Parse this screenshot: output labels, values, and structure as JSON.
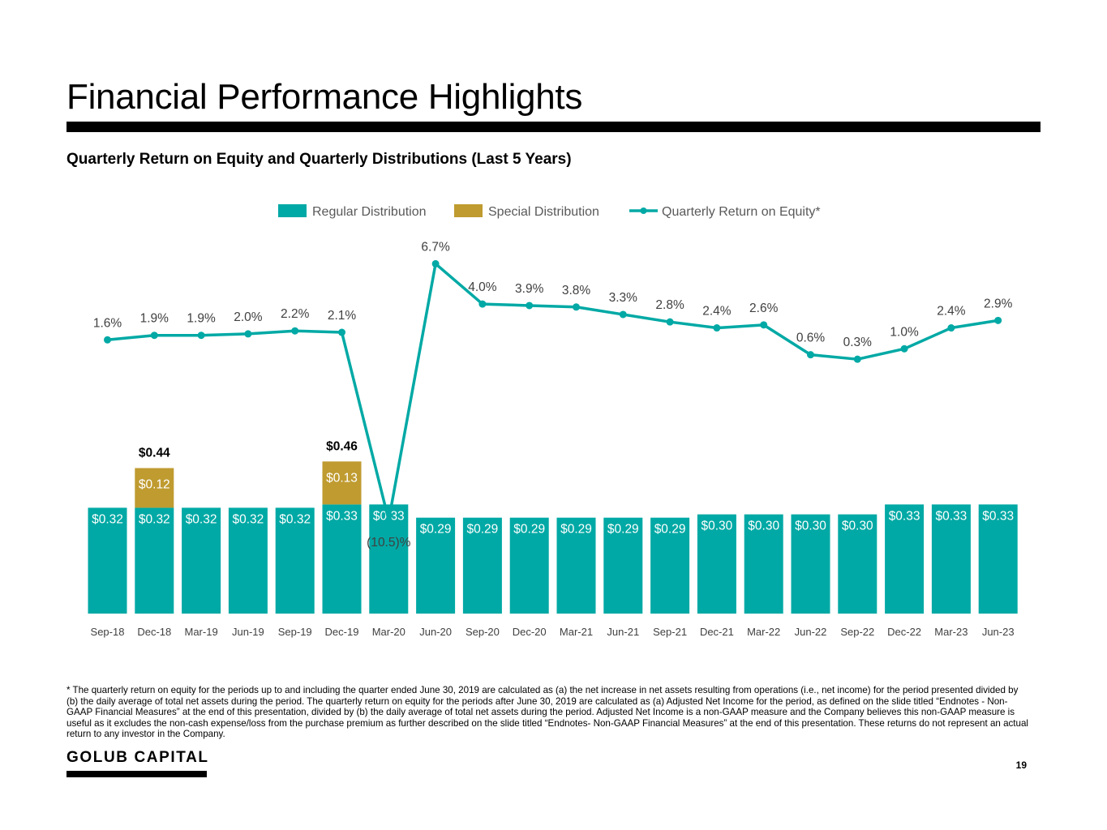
{
  "page": {
    "title": "Financial Performance Highlights",
    "subtitle": "Quarterly Return on Equity and Quarterly Distributions (Last 5 Years)",
    "footnote": "* The quarterly return on equity for the periods up to and including the quarter ended June 30, 2019 are calculated as (a) the net increase in net assets resulting from operations (i.e., net income) for the period presented divided by (b) the daily average of total net assets during the period. The quarterly return on equity for the periods after June 30, 2019 are calculated as (a) Adjusted Net Income for the period, as defined on the slide titled “Endnotes - Non-GAAP Financial Measures” at the end of this presentation, divided by (b) the daily average of total net assets during the period. Adjusted Net Income is a non-GAAP measure and the Company believes this non-GAAP measure is useful as it excludes the non-cash expense/loss from the purchase premium as further described on the slide titled “Endnotes- Non-GAAP Financial Measures”  at the end of this presentation. These returns do not represent an actual return to any investor in the Company.",
    "brand": "GOLUB CAPITAL",
    "page_number": "19"
  },
  "chart_data": {
    "type": "bar",
    "categories": [
      "Sep-18",
      "Dec-18",
      "Mar-19",
      "Jun-19",
      "Sep-19",
      "Dec-19",
      "Mar-20",
      "Jun-20",
      "Sep-20",
      "Dec-20",
      "Mar-21",
      "Jun-21",
      "Sep-21",
      "Dec-21",
      "Mar-22",
      "Jun-22",
      "Sep-22",
      "Dec-22",
      "Mar-23",
      "Jun-23"
    ],
    "legend": {
      "placement": "top-center",
      "entries": [
        {
          "label": "Regular Distribution",
          "color": "#00A9A5",
          "kind": "bar"
        },
        {
          "label": "Special Distribution",
          "color": "#BF9B30",
          "kind": "bar"
        },
        {
          "label": "Quarterly Return on Equity*",
          "color": "#00A9A5",
          "kind": "line"
        }
      ]
    },
    "series": [
      {
        "name": "Regular Distribution",
        "type": "bar",
        "color": "#00A9A5",
        "values": [
          0.32,
          0.32,
          0.32,
          0.32,
          0.32,
          0.33,
          0.33,
          0.29,
          0.29,
          0.29,
          0.29,
          0.29,
          0.29,
          0.3,
          0.3,
          0.3,
          0.3,
          0.33,
          0.33,
          0.33
        ],
        "labels": [
          "$0.32",
          "$0.32",
          "$0.32",
          "$0.32",
          "$0.32",
          "$0.33",
          "$0.33",
          "$0.29",
          "$0.29",
          "$0.29",
          "$0.29",
          "$0.29",
          "$0.29",
          "$0.30",
          "$0.30",
          "$0.30",
          "$0.30",
          "$0.33",
          "$0.33",
          "$0.33"
        ]
      },
      {
        "name": "Special Distribution",
        "type": "bar",
        "color": "#BF9B30",
        "values": [
          null,
          0.12,
          null,
          null,
          null,
          0.13,
          null,
          null,
          null,
          null,
          null,
          null,
          null,
          null,
          null,
          null,
          null,
          null,
          null,
          null
        ],
        "labels": [
          null,
          "$0.12",
          null,
          null,
          null,
          "$0.13",
          null,
          null,
          null,
          null,
          null,
          null,
          null,
          null,
          null,
          null,
          null,
          null,
          null,
          null
        ]
      },
      {
        "name": "Quarterly Return on Equity*",
        "type": "line",
        "color": "#00A9A5",
        "values": [
          1.6,
          1.9,
          1.9,
          2.0,
          2.2,
          2.1,
          -10.5,
          6.7,
          4.0,
          3.9,
          3.8,
          3.3,
          2.8,
          2.4,
          2.6,
          0.6,
          0.3,
          1.0,
          2.4,
          2.9
        ],
        "labels": [
          "1.6%",
          "1.9%",
          "1.9%",
          "2.0%",
          "2.2%",
          "2.1%",
          "(10.5)%",
          "6.7%",
          "4.0%",
          "3.9%",
          "3.8%",
          "3.3%",
          "2.8%",
          "2.4%",
          "2.6%",
          "0.6%",
          "0.3%",
          "1.0%",
          "2.4%",
          "2.9%"
        ]
      }
    ],
    "total_labels": [
      null,
      "$0.44",
      null,
      null,
      null,
      "$0.46",
      null,
      null,
      null,
      null,
      null,
      null,
      null,
      null,
      null,
      null,
      null,
      null,
      null,
      null
    ],
    "grid": false
  }
}
